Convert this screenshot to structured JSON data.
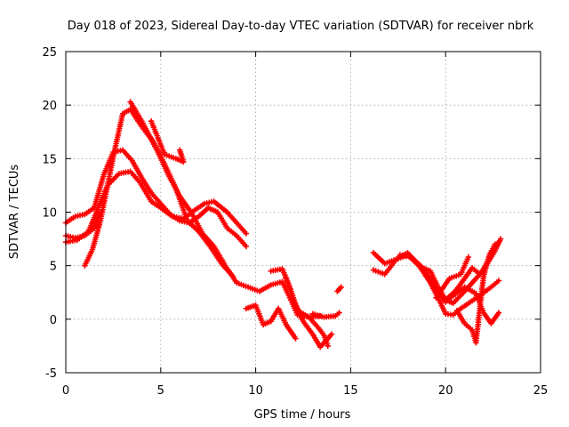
{
  "chart_data": {
    "type": "scatter",
    "title": "Day 018 of 2023, Sidereal Day-to-day VTEC variation (SDTVAR) for receiver nbrk",
    "xlabel": "GPS time / hours",
    "ylabel": "SDTVAR / TECUs",
    "xlim": [
      0,
      25
    ],
    "ylim": [
      -5,
      25
    ],
    "xticks": [
      0,
      5,
      10,
      15,
      20,
      25
    ],
    "yticks": [
      -5,
      0,
      5,
      10,
      15,
      20,
      25
    ],
    "grid": true,
    "color": "#ff0000",
    "marker": "plus",
    "series": [
      {
        "name": "arc-1",
        "points": [
          [
            0.0,
            9.0
          ],
          [
            0.5,
            9.6
          ],
          [
            1.0,
            9.8
          ],
          [
            1.5,
            10.4
          ],
          [
            2.0,
            13.5
          ],
          [
            2.5,
            15.6
          ],
          [
            3.0,
            15.8
          ],
          [
            3.5,
            14.8
          ],
          [
            4.0,
            13.2
          ],
          [
            4.5,
            11.8
          ],
          [
            5.0,
            10.8
          ],
          [
            5.5,
            9.8
          ],
          [
            6.0,
            9.2
          ],
          [
            6.5,
            9.0
          ],
          [
            7.0,
            9.6
          ],
          [
            7.5,
            10.4
          ],
          [
            8.0,
            10.0
          ],
          [
            8.5,
            8.5
          ],
          [
            9.0,
            7.8
          ],
          [
            9.5,
            6.8
          ]
        ]
      },
      {
        "name": "arc-2",
        "points": [
          [
            0.0,
            7.8
          ],
          [
            0.5,
            7.6
          ],
          [
            1.0,
            7.8
          ],
          [
            1.5,
            8.5
          ],
          [
            1.8,
            10.0
          ]
        ]
      },
      {
        "name": "arc-3",
        "points": [
          [
            0.0,
            7.2
          ],
          [
            0.6,
            7.4
          ],
          [
            1.2,
            8.2
          ],
          [
            1.8,
            10.8
          ],
          [
            2.2,
            12.5
          ],
          [
            2.8,
            13.6
          ],
          [
            3.4,
            13.8
          ],
          [
            3.9,
            12.8
          ],
          [
            4.5,
            11.0
          ],
          [
            5.0,
            10.4
          ],
          [
            5.6,
            9.6
          ],
          [
            6.2,
            9.4
          ],
          [
            6.8,
            10.2
          ],
          [
            7.3,
            10.8
          ],
          [
            7.8,
            11.0
          ],
          [
            8.5,
            10.0
          ],
          [
            9.0,
            9.0
          ],
          [
            9.5,
            8.0
          ]
        ]
      },
      {
        "name": "arc-4",
        "points": [
          [
            1.0,
            5.0
          ],
          [
            1.4,
            6.5
          ],
          [
            1.8,
            9.0
          ],
          [
            2.2,
            12.5
          ],
          [
            2.6,
            16.0
          ],
          [
            3.0,
            19.2
          ],
          [
            3.4,
            19.6
          ],
          [
            4.0,
            18.0
          ],
          [
            4.6,
            16.6
          ],
          [
            5.2,
            14.5
          ],
          [
            5.8,
            12.2
          ],
          [
            6.4,
            9.2
          ],
          [
            7.0,
            8.2
          ],
          [
            7.6,
            6.8
          ],
          [
            8.2,
            5.2
          ],
          [
            8.8,
            4.0
          ]
        ]
      },
      {
        "name": "arc-5",
        "points": [
          [
            3.4,
            20.3
          ],
          [
            4.0,
            18.5
          ],
          [
            4.8,
            15.8
          ],
          [
            5.4,
            13.5
          ],
          [
            6.0,
            11.5
          ],
          [
            6.6,
            10.0
          ],
          [
            7.2,
            8.0
          ],
          [
            7.8,
            6.8
          ],
          [
            8.4,
            5.0
          ],
          [
            9.0,
            3.4
          ],
          [
            9.6,
            3.0
          ],
          [
            10.2,
            2.6
          ],
          [
            10.8,
            3.2
          ],
          [
            11.4,
            3.5
          ],
          [
            11.8,
            2.0
          ],
          [
            12.2,
            0.4
          ],
          [
            12.8,
            0.2
          ],
          [
            13.4,
            0.3
          ]
        ]
      },
      {
        "name": "arc-6",
        "points": [
          [
            4.5,
            18.5
          ],
          [
            5.2,
            15.4
          ],
          [
            5.8,
            15.0
          ],
          [
            6.2,
            14.7
          ],
          [
            6.0,
            15.8
          ]
        ]
      },
      {
        "name": "arc-7",
        "points": [
          [
            9.5,
            1.0
          ],
          [
            10.0,
            1.3
          ],
          [
            10.4,
            -0.5
          ],
          [
            10.8,
            -0.2
          ],
          [
            11.2,
            1.0
          ],
          [
            11.6,
            -0.5
          ],
          [
            12.1,
            -1.8
          ]
        ]
      },
      {
        "name": "arc-8",
        "points": [
          [
            10.8,
            4.5
          ],
          [
            11.4,
            4.7
          ],
          [
            11.8,
            3.0
          ],
          [
            12.2,
            0.8
          ],
          [
            12.8,
            0.2
          ],
          [
            13.3,
            -0.8
          ],
          [
            13.6,
            -1.5
          ],
          [
            13.8,
            -2.5
          ]
        ]
      },
      {
        "name": "arc-9",
        "points": [
          [
            11.6,
            3.8
          ],
          [
            12.0,
            1.8
          ],
          [
            12.5,
            -0.2
          ],
          [
            13.0,
            -1.4
          ],
          [
            13.4,
            -2.6
          ],
          [
            14.0,
            -1.4
          ]
        ]
      },
      {
        "name": "arc-10",
        "points": [
          [
            13.0,
            0.5
          ],
          [
            13.6,
            0.2
          ],
          [
            14.2,
            0.3
          ],
          [
            14.4,
            0.6
          ]
        ]
      },
      {
        "name": "arc-11",
        "points": [
          [
            14.3,
            2.6
          ],
          [
            14.5,
            3.0
          ]
        ]
      },
      {
        "name": "arc-12",
        "points": [
          [
            16.2,
            6.2
          ],
          [
            16.8,
            5.2
          ],
          [
            17.4,
            5.6
          ],
          [
            18.0,
            6.2
          ],
          [
            18.6,
            5.0
          ],
          [
            19.2,
            3.4
          ],
          [
            19.6,
            2.0
          ],
          [
            20.0,
            0.5
          ],
          [
            20.4,
            0.4
          ],
          [
            20.8,
            1.0
          ],
          [
            21.3,
            1.6
          ],
          [
            21.8,
            2.2
          ],
          [
            22.4,
            3.0
          ],
          [
            22.8,
            3.6
          ]
        ]
      },
      {
        "name": "arc-13",
        "points": [
          [
            16.2,
            4.6
          ],
          [
            16.8,
            4.2
          ],
          [
            17.4,
            5.6
          ],
          [
            18.0,
            6.0
          ],
          [
            18.6,
            5.0
          ],
          [
            19.2,
            3.8
          ],
          [
            19.6,
            2.6
          ],
          [
            20.0,
            1.6
          ],
          [
            20.4,
            2.2
          ],
          [
            21.0,
            3.0
          ],
          [
            21.6,
            2.4
          ],
          [
            22.0,
            0.6
          ],
          [
            22.4,
            -0.4
          ],
          [
            22.8,
            0.6
          ]
        ]
      },
      {
        "name": "arc-14",
        "points": [
          [
            17.6,
            6.0
          ],
          [
            18.2,
            5.8
          ],
          [
            18.8,
            4.8
          ],
          [
            19.2,
            4.5
          ],
          [
            19.6,
            3.0
          ],
          [
            20.0,
            1.8
          ],
          [
            20.4,
            1.5
          ],
          [
            21.0,
            2.6
          ],
          [
            21.6,
            3.8
          ],
          [
            22.0,
            4.6
          ],
          [
            22.4,
            6.2
          ],
          [
            22.8,
            7.2
          ]
        ]
      },
      {
        "name": "arc-15",
        "points": [
          [
            19.0,
            4.0
          ],
          [
            19.6,
            2.8
          ],
          [
            20.0,
            1.8
          ],
          [
            20.5,
            2.6
          ],
          [
            21.0,
            3.8
          ],
          [
            21.4,
            4.8
          ],
          [
            21.8,
            4.2
          ],
          [
            22.2,
            5.2
          ],
          [
            22.6,
            6.4
          ],
          [
            22.9,
            7.5
          ]
        ]
      },
      {
        "name": "arc-16",
        "points": [
          [
            19.5,
            2.0
          ],
          [
            20.2,
            3.8
          ],
          [
            20.8,
            4.2
          ],
          [
            21.2,
            5.8
          ]
        ]
      },
      {
        "name": "arc-17",
        "points": [
          [
            20.6,
            0.8
          ],
          [
            21.0,
            -0.4
          ],
          [
            21.4,
            -1.0
          ],
          [
            21.6,
            -2.2
          ],
          [
            21.8,
            1.0
          ],
          [
            22.0,
            4.0
          ],
          [
            22.3,
            6.0
          ],
          [
            22.6,
            7.0
          ]
        ]
      }
    ]
  }
}
